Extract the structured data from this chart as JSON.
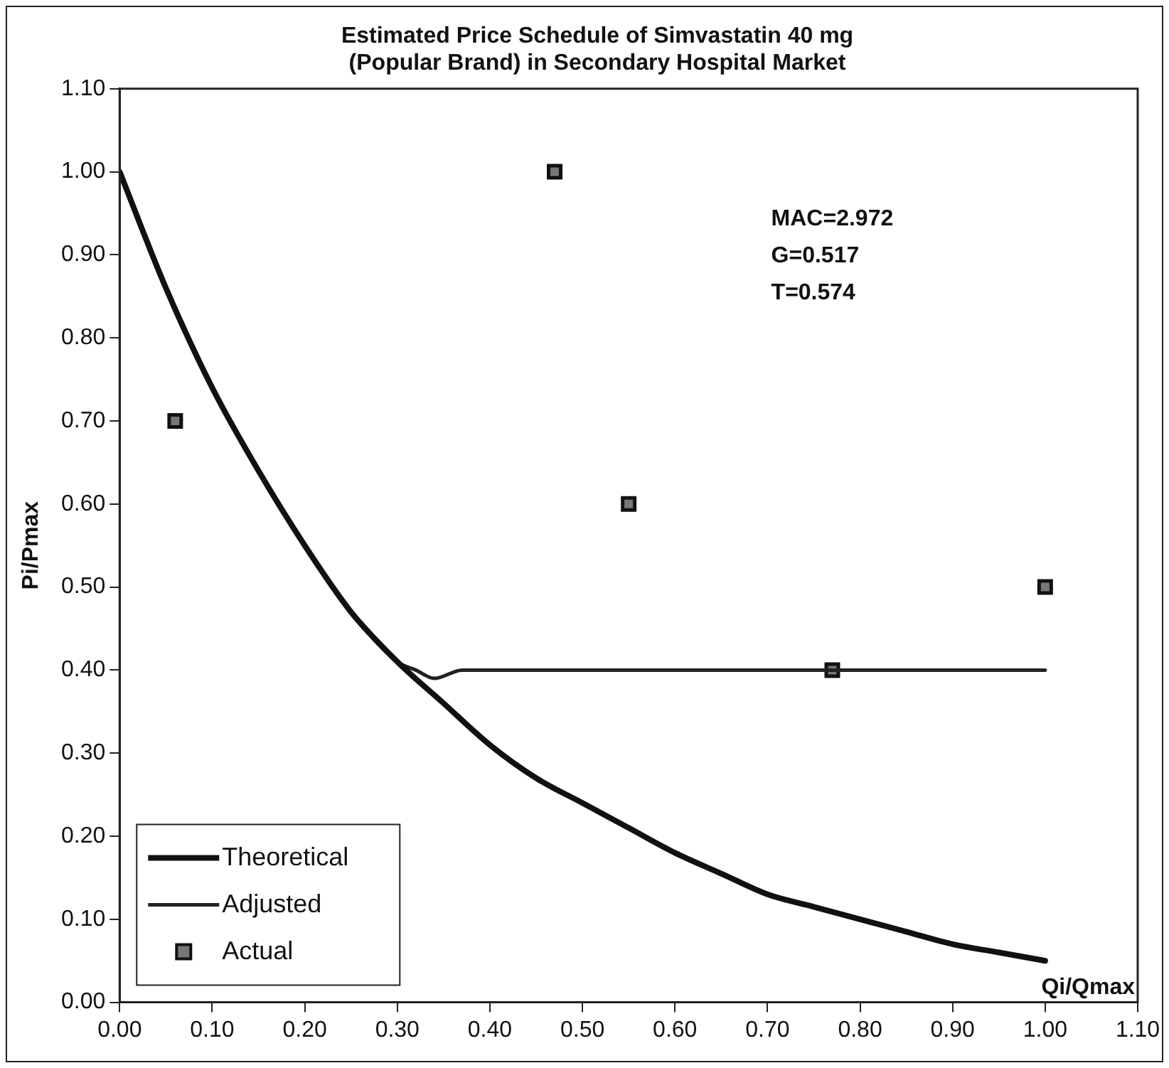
{
  "chart_data": {
    "type": "scatter",
    "title": "Estimated Price Schedule of Simvastatin 40 mg\n(Popular Brand) in Secondary Hospital Market",
    "xlabel": "Qi/Qmax",
    "ylabel": "Pi/Pmax",
    "annotations": [
      "MAC=2.972\nG=0.517\nT=0.574"
    ],
    "series": [
      {
        "name": "Theoretical",
        "type": "line",
        "color": "#111111",
        "marker": "none",
        "x": [
          0,
          0.05,
          0.1,
          0.15,
          0.2,
          0.25,
          0.3,
          0.35,
          0.4,
          0.45,
          0.5,
          0.55,
          0.6,
          0.65,
          0.7,
          0.75,
          0.8,
          0.85,
          0.9,
          0.95,
          1.0
        ],
        "values": [
          1.0,
          0.86,
          0.74,
          0.64,
          0.55,
          0.47,
          0.41,
          0.36,
          0.31,
          0.27,
          0.24,
          0.21,
          0.18,
          0.155,
          0.13,
          0.115,
          0.1,
          0.085,
          0.07,
          0.06,
          0.05
        ]
      },
      {
        "name": "Adjusted",
        "type": "line",
        "color": "#222222",
        "marker": "none",
        "x": [
          0,
          0.05,
          0.1,
          0.15,
          0.2,
          0.25,
          0.3,
          0.32,
          0.34,
          0.37,
          0.4,
          1.0
        ],
        "values": [
          1.0,
          0.86,
          0.74,
          0.64,
          0.55,
          0.47,
          0.41,
          0.4,
          0.39,
          0.4,
          0.4,
          0.4
        ]
      },
      {
        "name": "Actual",
        "type": "scatter",
        "color": "#777777",
        "marker": "square",
        "x": [
          0.06,
          0.47,
          0.55,
          0.77,
          1.0
        ],
        "values": [
          0.7,
          1.0,
          0.6,
          0.4,
          0.5
        ]
      }
    ],
    "xlim": [
      0,
      1.1
    ],
    "ylim": [
      0,
      1.1
    ],
    "xticks": [
      {
        "value": 0,
        "label": "0.00"
      },
      {
        "value": 0.1,
        "label": "0.10"
      },
      {
        "value": 0.2,
        "label": "0.20"
      },
      {
        "value": 0.3,
        "label": "0.30"
      },
      {
        "value": 0.4,
        "label": "0.40"
      },
      {
        "value": 0.5,
        "label": "0.50"
      },
      {
        "value": 0.6,
        "label": "0.60"
      },
      {
        "value": 0.7,
        "label": "0.70"
      },
      {
        "value": 0.8,
        "label": "0.80"
      },
      {
        "value": 0.9,
        "label": "0.90"
      },
      {
        "value": 1.0,
        "label": "1.00"
      },
      {
        "value": 1.1,
        "label": "1.10"
      }
    ],
    "yticks": [
      {
        "value": 0,
        "label": "0.00"
      },
      {
        "value": 0.1,
        "label": "0.10"
      },
      {
        "value": 0.2,
        "label": "0.20"
      },
      {
        "value": 0.3,
        "label": "0.30"
      },
      {
        "value": 0.4,
        "label": "0.40"
      },
      {
        "value": 0.5,
        "label": "0.50"
      },
      {
        "value": 0.6,
        "label": "0.60"
      },
      {
        "value": 0.7,
        "label": "0.70"
      },
      {
        "value": 0.8,
        "label": "0.80"
      },
      {
        "value": 0.9,
        "label": "0.90"
      },
      {
        "value": 1.0,
        "label": "1.00"
      },
      {
        "value": 1.1,
        "label": "1.10"
      }
    ],
    "grid": false,
    "legend": "bottom left"
  }
}
